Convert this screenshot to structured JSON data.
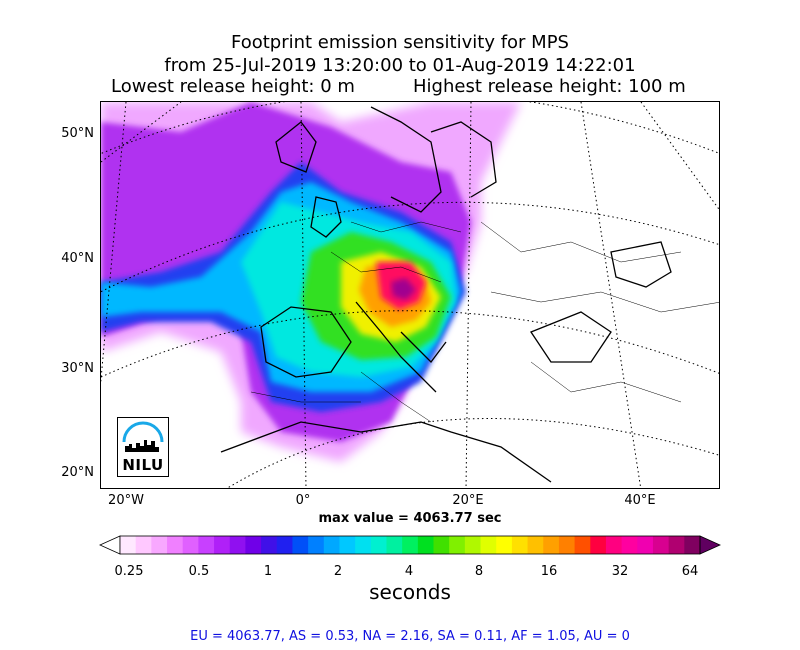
{
  "title": {
    "line1": "Footprint emission sensitivity for MPS",
    "line2": "from 25-Jul-2019 13:20:00 to 01-Aug-2019 14:22:01",
    "line3_left": "Lowest release height: 0 m",
    "line3_right": "Highest release height: 100 m"
  },
  "map": {
    "projection": "lambert-conformal",
    "graticule": "dotted",
    "lat_labels": [
      "50°N",
      "40°N",
      "30°N",
      "20°N"
    ],
    "lon_labels": [
      "20°W",
      "0°",
      "20°E",
      "40°E"
    ],
    "max_value_text": "max value = 4063.77 sec",
    "logo_text": "NILU",
    "logo_icon": "nilu-skyline-icon"
  },
  "colorbar": {
    "tick_labels": [
      "0.25",
      "0.5",
      "1",
      "2",
      "4",
      "8",
      "16",
      "32",
      "64"
    ],
    "label": "seconds",
    "extend": "both",
    "colors": [
      "#ffe8ff",
      "#ffc8ff",
      "#f8a8ff",
      "#f080ff",
      "#e060ff",
      "#c840ff",
      "#b020f8",
      "#9010f0",
      "#7000e8",
      "#4010e8",
      "#2020f0",
      "#0050f8",
      "#0080ff",
      "#00a8ff",
      "#00c8ff",
      "#00e0f0",
      "#00f0d0",
      "#00f0a0",
      "#00f060",
      "#00e020",
      "#40e000",
      "#80f000",
      "#b0f800",
      "#e0ff00",
      "#ffff00",
      "#ffe000",
      "#ffc000",
      "#ffa000",
      "#ff8000",
      "#ff5000",
      "#ff0040",
      "#ff0080",
      "#ff00a0",
      "#f000b0",
      "#d80090",
      "#b00070",
      "#800060"
    ],
    "under_color": "#ffffff",
    "over_color": "#600060"
  },
  "summary": "EU = 4063.77,  AS = 0.53,  NA = 2.16,  SA = 0.11,  AF = 1.05,  AU = 0"
}
